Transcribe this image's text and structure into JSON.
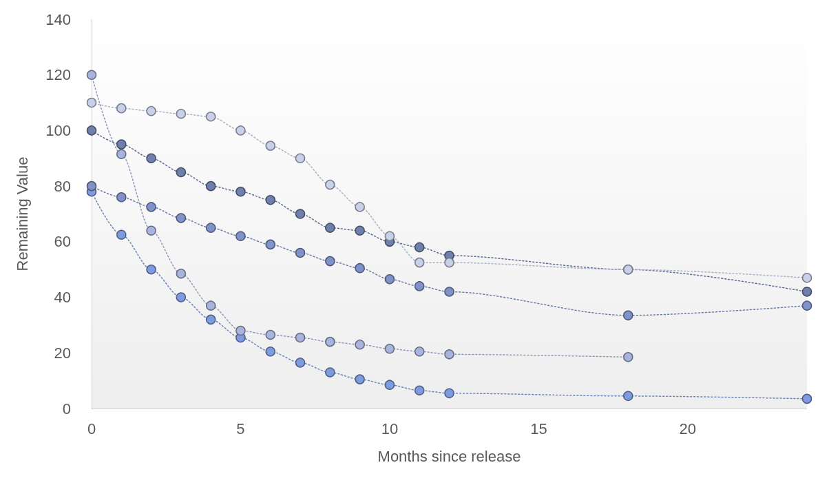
{
  "chart_data": {
    "type": "line",
    "xlabel": "Months since release",
    "ylabel": "Remaining Value",
    "x": [
      0,
      1,
      2,
      3,
      4,
      5,
      6,
      7,
      8,
      9,
      10,
      11,
      12,
      18,
      24
    ],
    "xlim": [
      0,
      24
    ],
    "xticks": [
      0,
      5,
      10,
      15,
      20
    ],
    "ylim": [
      0,
      140
    ],
    "yticks": [
      0,
      20,
      40,
      60,
      80,
      100,
      120,
      140
    ],
    "grid": false,
    "marker": "circle",
    "line_style": "dotted",
    "series": [
      {
        "color": "#c9d0ea",
        "values": [
          110,
          108,
          107,
          106,
          105,
          100,
          94.5,
          90,
          80.5,
          72.5,
          62,
          52.5,
          52.5,
          50,
          47
        ]
      },
      {
        "color": "#6f80ad",
        "values": [
          100,
          95,
          90,
          85,
          80,
          78,
          75,
          70,
          65,
          64,
          60,
          58,
          55,
          50,
          42
        ]
      },
      {
        "color": "#8093c8",
        "values": [
          80,
          76,
          72.5,
          68.5,
          65,
          62,
          59,
          56,
          53,
          50.5,
          46.5,
          44,
          42,
          33.5,
          37
        ]
      },
      {
        "color": "#a9b4dc",
        "values": [
          120,
          91.5,
          64,
          48.5,
          37,
          28,
          26.5,
          25.5,
          24,
          23,
          21.5,
          20.5,
          19.5,
          18.5,
          null
        ]
      },
      {
        "color": "#7f9be0",
        "values": [
          78,
          62.5,
          50,
          40,
          32,
          25.5,
          20.5,
          16.5,
          13,
          10.5,
          8.5,
          6.5,
          5.5,
          4.5,
          3.5
        ]
      }
    ]
  }
}
